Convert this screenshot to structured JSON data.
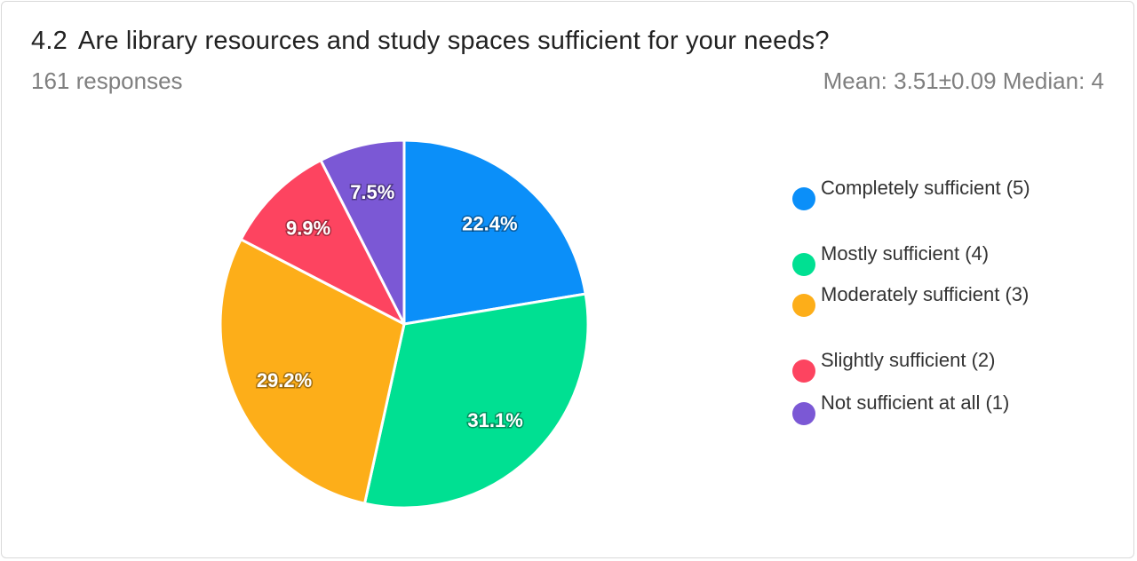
{
  "header": {
    "number": "4.2",
    "question": "Are library resources and study spaces sufficient for your needs?",
    "responses": "161 responses",
    "stats": "Mean: 3.51±0.09 Median: 4"
  },
  "colors": {
    "completely": "#0b8ff9",
    "mostly": "#00e092",
    "moderately": "#fdae19",
    "slightly": "#fd4460",
    "not_at_all": "#7b58d5"
  },
  "chart_data": {
    "type": "pie",
    "title": "Are library resources and study spaces sufficient for your needs?",
    "legend_position": "right",
    "slices": [
      {
        "label": "Completely sufficient (5)",
        "value": 22.4,
        "display": "22.4%",
        "color": "#0b8ff9"
      },
      {
        "label": "Mostly sufficient (4)",
        "value": 31.1,
        "display": "31.1%",
        "color": "#00e092"
      },
      {
        "label": "Moderately sufficient (3)",
        "value": 29.2,
        "display": "29.2%",
        "color": "#fdae19"
      },
      {
        "label": "Slightly sufficient (2)",
        "value": 9.9,
        "display": "9.9%",
        "color": "#fd4460"
      },
      {
        "label": "Not sufficient at all (1)",
        "value": 7.5,
        "display": "7.5%",
        "color": "#7b58d5"
      }
    ]
  }
}
